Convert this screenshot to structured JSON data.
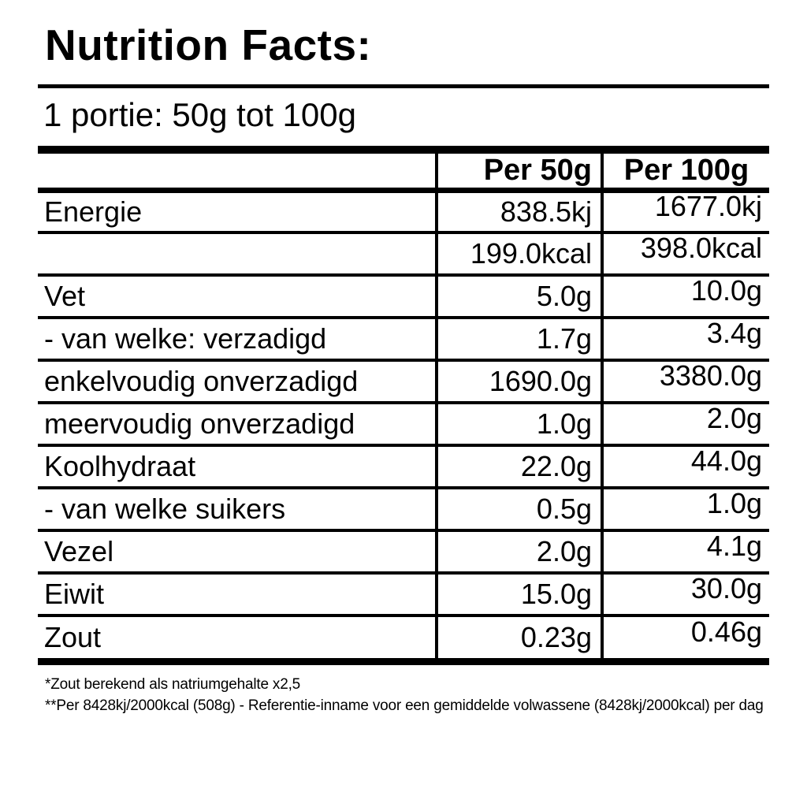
{
  "title": "Nutrition Facts:",
  "serving_line": "1 portie: 50g tot 100g",
  "table": {
    "columns": [
      "",
      "Per 50g",
      "Per 100g"
    ],
    "rows": [
      {
        "label": "Energie",
        "per50": "838.5kj",
        "per100": "1677.0kj"
      },
      {
        "label": "",
        "per50": "199.0kcal",
        "per100": "398.0kcal"
      },
      {
        "label": "Vet",
        "per50": "5.0g",
        "per100": "10.0g"
      },
      {
        "label": "- van welke: verzadigd",
        "per50": "1.7g",
        "per100": "3.4g"
      },
      {
        "label": "enkelvoudig onverzadigd",
        "per50": "1690.0g",
        "per100": "3380.0g"
      },
      {
        "label": "meervoudig onverzadigd",
        "per50": "1.0g",
        "per100": "2.0g"
      },
      {
        "label": "Koolhydraat",
        "per50": "22.0g",
        "per100": "44.0g"
      },
      {
        "label": "- van welke suikers",
        "per50": "0.5g",
        "per100": "1.0g"
      },
      {
        "label": "Vezel",
        "per50": "2.0g",
        "per100": "4.1g"
      },
      {
        "label": "Eiwit",
        "per50": "15.0g",
        "per100": "30.0g"
      },
      {
        "label": "Zout",
        "per50": "0.23g",
        "per100": "0.46g"
      }
    ]
  },
  "footnotes": [
    "*Zout berekend als natriumgehalte x2,5",
    "**Per 8428kj/2000kcal (508g) - Referentie-inname voor een gemiddelde volwassene (8428kj/2000kcal) per dag"
  ],
  "colors": {
    "text": "#000000",
    "background": "#ffffff",
    "rule": "#000000"
  }
}
